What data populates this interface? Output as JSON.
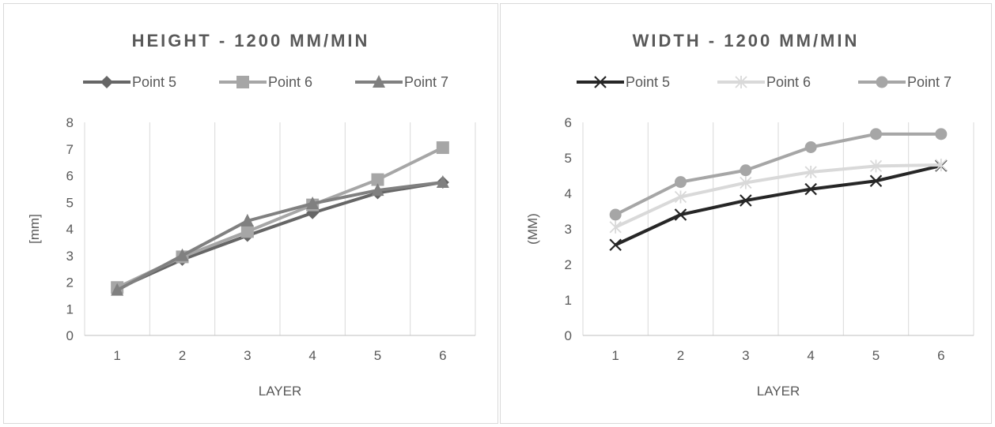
{
  "chart_data": [
    {
      "type": "line",
      "title": "HEIGHT - 1200 MM/MIN",
      "xlabel": "LAYER",
      "ylabel": "[mm]",
      "categories": [
        "1",
        "2",
        "3",
        "4",
        "5",
        "6"
      ],
      "ylim": [
        0,
        8
      ],
      "yticks": [
        "0",
        "1",
        "2",
        "3",
        "4",
        "5",
        "6",
        "7",
        "8"
      ],
      "grid": "vertical",
      "legend": "top",
      "series": [
        {
          "name": "Point 5",
          "values": [
            1.75,
            2.85,
            3.75,
            4.6,
            5.35,
            5.75
          ],
          "color": "#666666",
          "marker": "diamond"
        },
        {
          "name": "Point 6",
          "values": [
            1.8,
            2.95,
            3.9,
            4.9,
            5.85,
            7.05
          ],
          "color": "#a6a6a6",
          "marker": "square"
        },
        {
          "name": "Point 7",
          "values": [
            1.7,
            3.0,
            4.3,
            4.95,
            5.45,
            5.75
          ],
          "color": "#808080",
          "marker": "triangle"
        }
      ]
    },
    {
      "type": "line",
      "title": "WIDTH - 1200 MM/MIN",
      "xlabel": "LAYER",
      "ylabel": "(MM)",
      "categories": [
        "1",
        "2",
        "3",
        "4",
        "5",
        "6"
      ],
      "ylim": [
        0,
        6
      ],
      "yticks": [
        "0",
        "1",
        "2",
        "3",
        "4",
        "5",
        "6"
      ],
      "grid": "vertical",
      "legend": "top",
      "series": [
        {
          "name": "Point 5",
          "values": [
            2.55,
            3.4,
            3.8,
            4.12,
            4.35,
            4.78
          ],
          "color": "#262626",
          "marker": "x"
        },
        {
          "name": "Point 6",
          "values": [
            3.05,
            3.9,
            4.3,
            4.6,
            4.77,
            4.8
          ],
          "color": "#d9d9d9",
          "marker": "star"
        },
        {
          "name": "Point 7",
          "values": [
            3.4,
            4.32,
            4.65,
            5.3,
            5.67,
            5.67
          ],
          "color": "#a6a6a6",
          "marker": "circle"
        }
      ]
    }
  ]
}
